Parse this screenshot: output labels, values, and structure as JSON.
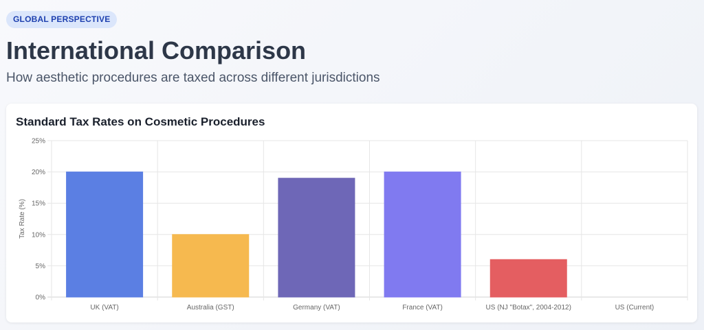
{
  "header": {
    "badge": "GLOBAL PERSPECTIVE",
    "title": "International Comparison",
    "subtitle": "How aesthetic procedures are taxed across different jurisdictions"
  },
  "card": {
    "title": "Standard Tax Rates on Cosmetic Procedures"
  },
  "chart_data": {
    "type": "bar",
    "title": "Standard Tax Rates on Cosmetic Procedures",
    "xlabel": "",
    "ylabel": "Tax Rate (%)",
    "categories": [
      "UK (VAT)",
      "Australia (GST)",
      "Germany (VAT)",
      "France (VAT)",
      "US (NJ \"Botax\", 2004-2012)",
      "US (Current)"
    ],
    "values": [
      20,
      10,
      19,
      20,
      6,
      0
    ],
    "colors": [
      "#5b7fe3",
      "#f6b94f",
      "#6e67b7",
      "#807af0",
      "#e45e61",
      "#cccccc"
    ],
    "ylim": [
      0,
      25
    ],
    "yticks": [
      0,
      5,
      10,
      15,
      20,
      25
    ],
    "ytick_suffix": "%",
    "grid": true,
    "legend": "none"
  }
}
